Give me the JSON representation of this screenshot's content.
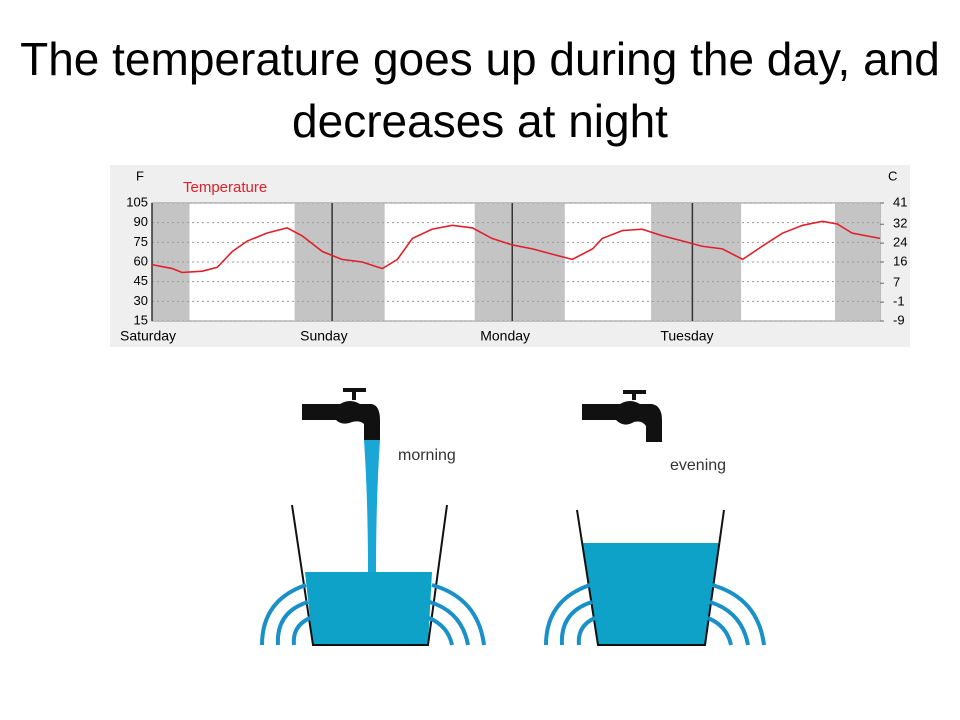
{
  "slide_title": "The temperature goes up during the day, and decreases at night",
  "chart_data": {
    "type": "line",
    "title": "Temperature",
    "ylabel": "F",
    "y2label": "C",
    "x": [
      0,
      2.7,
      4,
      6.7,
      8.7,
      10.7,
      12.7,
      15.3,
      18,
      20,
      22.7,
      25.3,
      28,
      30.7,
      32.7,
      34.7,
      37.3,
      40,
      42.7,
      45.3,
      48,
      50.7,
      53.3,
      56,
      58.7,
      60,
      62.7,
      65.3,
      68,
      70.7,
      73.3,
      76,
      78.7,
      81.3,
      84,
      86.7,
      89.3,
      91.3,
      93.3,
      97
    ],
    "series": [
      {
        "name": "Temperature",
        "color": "#e0202a",
        "values": [
          58,
          55,
          52,
          53,
          56,
          68,
          76,
          82,
          86,
          80,
          68,
          62,
          60,
          55,
          62,
          78,
          85,
          88,
          86,
          78,
          73,
          70,
          66,
          62,
          70,
          78,
          84,
          85,
          80,
          76,
          72,
          70,
          62,
          72,
          82,
          88,
          91,
          89,
          82,
          78
        ]
      }
    ],
    "xlim": [
      0,
      97
    ],
    "xticks": [
      {
        "value": 0,
        "label": "Saturday"
      },
      {
        "value": 24,
        "label": "Sunday"
      },
      {
        "value": 48,
        "label": "Monday"
      },
      {
        "value": 72,
        "label": "Tuesday"
      }
    ],
    "ylim": [
      15,
      105
    ],
    "yticks": [
      105,
      90,
      75,
      60,
      45,
      30,
      15
    ],
    "y2lim": [
      -9,
      41
    ],
    "y2ticks": [
      41,
      32,
      24,
      16,
      7,
      -1,
      -9
    ],
    "shaded_x": [
      [
        0,
        5
      ],
      [
        19,
        31
      ],
      [
        43,
        55
      ],
      [
        66.5,
        78.5
      ],
      [
        91,
        97
      ]
    ],
    "shade_color": "#c4c4c4",
    "grid": true
  },
  "illustration": {
    "labels": [
      "morning",
      "evening"
    ]
  }
}
